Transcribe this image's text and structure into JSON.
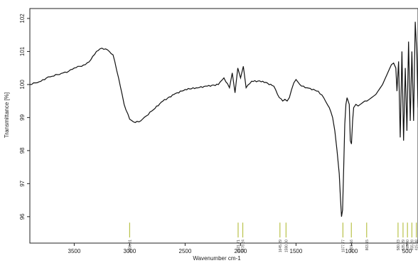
{
  "chart_data": {
    "type": "line",
    "title": "",
    "xlabel": "Wavenumber cm-1",
    "ylabel": "Transmittance [%]",
    "xlim": [
      3900,
      400
    ],
    "ylim": [
      95.2,
      102.3
    ],
    "x_ticks": [
      3500,
      3000,
      2500,
      2000,
      1500,
      1000,
      500
    ],
    "y_ticks": [
      96,
      97,
      98,
      99,
      100,
      101,
      102
    ],
    "grid": false,
    "series": [
      {
        "line_color": "#111111",
        "x": [
          3900,
          3850,
          3800,
          3750,
          3700,
          3650,
          3600,
          3550,
          3500,
          3450,
          3400,
          3350,
          3300,
          3250,
          3200,
          3150,
          3100,
          3050,
          3000,
          2950,
          2900,
          2850,
          2800,
          2700,
          2600,
          2500,
          2400,
          2300,
          2200,
          2150,
          2100,
          2075,
          2050,
          2025,
          2000,
          1975,
          1950,
          1900,
          1800,
          1700,
          1650,
          1620,
          1600,
          1580,
          1560,
          1540,
          1520,
          1500,
          1450,
          1400,
          1300,
          1250,
          1200,
          1170,
          1150,
          1130,
          1110,
          1100,
          1090,
          1080,
          1070,
          1060,
          1050,
          1040,
          1020,
          1010,
          1000,
          990,
          980,
          960,
          940,
          920,
          900,
          880,
          860,
          840,
          820,
          800,
          780,
          760,
          740,
          720,
          700,
          680,
          660,
          640,
          620,
          600,
          590,
          575,
          560,
          545,
          530,
          515,
          500,
          485,
          470,
          455,
          440,
          425,
          410,
          400
        ],
        "y": [
          100.0,
          100.05,
          100.1,
          100.2,
          100.25,
          100.3,
          100.35,
          100.4,
          100.5,
          100.55,
          100.6,
          100.75,
          101.0,
          101.1,
          101.05,
          100.9,
          100.2,
          99.4,
          98.95,
          98.85,
          98.9,
          99.05,
          99.2,
          99.5,
          99.7,
          99.85,
          99.9,
          99.95,
          100.0,
          100.2,
          99.9,
          100.35,
          99.75,
          100.5,
          100.2,
          100.55,
          99.9,
          100.1,
          100.1,
          99.95,
          99.6,
          99.5,
          99.55,
          99.5,
          99.6,
          99.85,
          100.05,
          100.15,
          99.95,
          99.9,
          99.8,
          99.6,
          99.3,
          99.0,
          98.6,
          98.0,
          97.3,
          96.6,
          96.0,
          96.2,
          97.5,
          98.8,
          99.4,
          99.6,
          99.4,
          98.3,
          98.2,
          98.9,
          99.3,
          99.4,
          99.35,
          99.4,
          99.45,
          99.5,
          99.5,
          99.55,
          99.6,
          99.65,
          99.7,
          99.8,
          99.9,
          100.0,
          100.15,
          100.3,
          100.45,
          100.6,
          100.65,
          100.5,
          99.8,
          100.7,
          98.4,
          101.0,
          98.3,
          100.5,
          98.6,
          101.3,
          98.9,
          101.0,
          98.9,
          101.9,
          100.9,
          99.3
        ]
      }
    ],
    "peaks": [
      {
        "x": 3000,
        "label": "3000.01"
      },
      {
        "x": 2022,
        "label": "2021.71"
      },
      {
        "x": 1980,
        "label": "1978.24"
      },
      {
        "x": 1645,
        "label": "1645.29"
      },
      {
        "x": 1590,
        "label": "1590.00"
      },
      {
        "x": 1077,
        "label": "1077.77"
      },
      {
        "x": 1001,
        "label": "1001.16"
      },
      {
        "x": 863,
        "label": "863.15"
      },
      {
        "x": 580,
        "label": "580.23"
      },
      {
        "x": 535,
        "label": "535.29"
      },
      {
        "x": 495,
        "label": "495.40"
      },
      {
        "x": 455,
        "label": "455.28"
      },
      {
        "x": 415,
        "label": "415.38"
      }
    ],
    "peak_marker_color": "#b9c24a"
  }
}
